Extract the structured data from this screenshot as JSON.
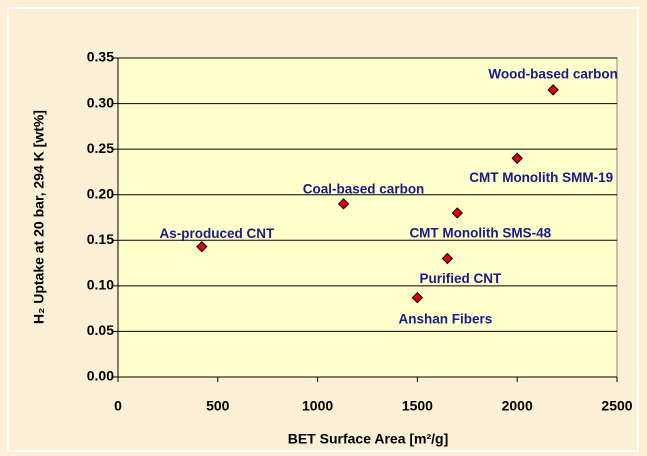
{
  "chart_data": {
    "type": "scatter",
    "x_label": "BET Surface Area [m²/g]",
    "y_label": "H₂ Uptake at 20 bar, 294 K  [wt%]",
    "labels": [
      "As-produced CNT",
      "Coal-based carbon",
      "Wood-based carbon",
      "CMT Monolith SMM-19",
      "CMT Monolith SMS-48",
      "Purified CNT",
      "Anshan Fibers"
    ],
    "x": [
      420,
      1130,
      2180,
      2000,
      1700,
      1650,
      1500
    ],
    "values": [
      0.143,
      0.19,
      0.315,
      0.24,
      0.18,
      0.13,
      0.087
    ],
    "color": "#e00000",
    "xlim": [
      0,
      2500
    ],
    "xticks": [
      0,
      500,
      1000,
      1500,
      2000,
      2500
    ],
    "ylim": [
      0,
      0.35
    ],
    "yticks": [
      {
        "value": 0,
        "label": "0.00"
      },
      {
        "value": 0.05,
        "label": "0.05"
      },
      {
        "value": 0.1,
        "label": "0.10"
      },
      {
        "value": 0.15,
        "label": "0.15"
      },
      {
        "value": 0.2,
        "label": "0.20"
      },
      {
        "value": 0.25,
        "label": "0.25"
      },
      {
        "value": 0.3,
        "label": "0.30"
      },
      {
        "value": 0.35,
        "label": "0.35"
      }
    ],
    "grid": true
  }
}
